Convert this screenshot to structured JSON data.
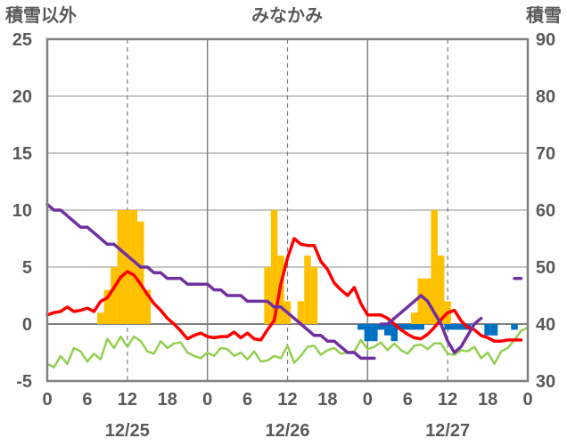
{
  "chart_data": {
    "type": "combo",
    "title": "みなかみ",
    "ylabel_left": "積雪以外",
    "ylabel_right": "積雪",
    "ylim_left": [
      -5,
      25
    ],
    "ylim_right": [
      30,
      90
    ],
    "yticks_left": [
      "-5",
      "0",
      "5",
      "10",
      "15",
      "20",
      "25"
    ],
    "yticks_right": [
      "30",
      "40",
      "50",
      "60",
      "70",
      "80",
      "90"
    ],
    "xlim": [
      0,
      72
    ],
    "xticks": [
      "0",
      "6",
      "12",
      "18",
      "0",
      "6",
      "12",
      "18",
      "0",
      "6",
      "12",
      "18",
      "0"
    ],
    "date_labels": [
      "12/25",
      "12/26",
      "12/27"
    ],
    "colors": {
      "bars": "#ffc000",
      "bars_negative": "#0070c0",
      "red": "#ff0000",
      "green": "#92d050",
      "purple": "#7030a0",
      "frame": "#808080"
    },
    "bars": [
      {
        "x": 8,
        "value": 1
      },
      {
        "x": 9,
        "value": 3
      },
      {
        "x": 10,
        "value": 5
      },
      {
        "x": 11,
        "value": 10
      },
      {
        "x": 12,
        "value": 10
      },
      {
        "x": 13,
        "value": 10
      },
      {
        "x": 14,
        "value": 9
      },
      {
        "x": 15,
        "value": 3
      },
      {
        "x": 33,
        "value": 5
      },
      {
        "x": 34,
        "value": 10
      },
      {
        "x": 35,
        "value": 6
      },
      {
        "x": 36,
        "value": 2
      },
      {
        "x": 38,
        "value": 2
      },
      {
        "x": 39,
        "value": 6
      },
      {
        "x": 40,
        "value": 5
      },
      {
        "x": 55,
        "value": 1
      },
      {
        "x": 56,
        "value": 4
      },
      {
        "x": 57,
        "value": 4
      },
      {
        "x": 58,
        "value": 10
      },
      {
        "x": 59,
        "value": 6
      },
      {
        "x": 60,
        "value": 2
      }
    ],
    "bars_negative": [
      {
        "x": 47,
        "value": -0.5
      },
      {
        "x": 48,
        "value": -1.5
      },
      {
        "x": 49,
        "value": -1.5
      },
      {
        "x": 50,
        "value": -0.5
      },
      {
        "x": 51,
        "value": -1
      },
      {
        "x": 52,
        "value": -1.5
      },
      {
        "x": 53,
        "value": -0.5
      },
      {
        "x": 54,
        "value": -0.5
      },
      {
        "x": 55,
        "value": -0.5
      },
      {
        "x": 56,
        "value": -0.5
      },
      {
        "x": 60,
        "value": -0.5
      },
      {
        "x": 61,
        "value": -0.5
      },
      {
        "x": 62,
        "value": -0.5
      },
      {
        "x": 63,
        "value": -0.5
      },
      {
        "x": 66,
        "value": -1
      },
      {
        "x": 67,
        "value": -1
      },
      {
        "x": 70,
        "value": -0.5
      }
    ],
    "series": [
      {
        "axis": "left",
        "color": "#ff0000",
        "x": [
          0,
          1,
          2,
          3,
          4,
          5,
          6,
          7,
          8,
          9,
          10,
          11,
          12,
          13,
          14,
          15,
          16,
          17,
          18,
          19,
          20,
          21,
          22,
          23,
          24,
          25,
          26,
          27,
          28,
          29,
          30,
          31,
          32,
          33,
          34,
          35,
          36,
          37,
          38,
          39,
          40,
          41,
          42,
          43,
          44,
          45,
          46,
          47,
          48,
          49,
          50,
          51,
          52,
          53,
          54,
          55,
          56,
          57,
          58,
          59,
          60,
          61,
          62,
          63,
          64,
          65,
          66,
          67,
          68,
          69,
          70,
          71
        ],
        "values": [
          0.8,
          1,
          1.1,
          1.5,
          1.1,
          1.2,
          1.4,
          1.1,
          2,
          2.3,
          3.2,
          4.1,
          4.6,
          4.3,
          3.5,
          2.6,
          1.8,
          1.2,
          0.5,
          0,
          -0.6,
          -1.3,
          -1,
          -0.8,
          -1.1,
          -1.2,
          -1.1,
          -1.1,
          -0.7,
          -1.2,
          -0.8,
          -1.3,
          -1.4,
          -0.5,
          0.3,
          3.5,
          5.8,
          7.5,
          7,
          6.9,
          6.9,
          5.5,
          4.8,
          3.6,
          3,
          2.5,
          3.2,
          1.8,
          0.8,
          0.8,
          0.8,
          0.5,
          0,
          -0.5,
          -0.9,
          -1.2,
          -1.3,
          -0.9,
          -0.3,
          0.4,
          1,
          1.2,
          0.3,
          -0.3,
          -0.5,
          -1,
          -1.2,
          -1.5,
          -1.5,
          -1.4,
          -1.4,
          -1.4
        ]
      },
      {
        "axis": "left",
        "color": "#92d050",
        "x": [
          0,
          1,
          2,
          3,
          4,
          5,
          6,
          7,
          8,
          9,
          10,
          11,
          12,
          13,
          14,
          15,
          16,
          17,
          18,
          19,
          20,
          21,
          22,
          23,
          24,
          25,
          26,
          27,
          28,
          29,
          30,
          31,
          32,
          33,
          34,
          35,
          36,
          37,
          38,
          39,
          40,
          41,
          42,
          43,
          44,
          45,
          46,
          47,
          48,
          49,
          50,
          51,
          52,
          53,
          54,
          55,
          56,
          57,
          58,
          59,
          60,
          61,
          62,
          63,
          64,
          65,
          66,
          67,
          68,
          69,
          70,
          71,
          72
        ],
        "values": [
          -3.5,
          -3.8,
          -2.8,
          -3.5,
          -2.1,
          -2.4,
          -3.3,
          -2.6,
          -3.1,
          -1.3,
          -2.1,
          -1.1,
          -2,
          -1.1,
          -1.5,
          -2.4,
          -2.6,
          -1.5,
          -2.1,
          -1.7,
          -1.6,
          -2.5,
          -2.8,
          -3,
          -2.5,
          -2.8,
          -2.1,
          -2.2,
          -2.8,
          -2.5,
          -3.1,
          -2.4,
          -3.3,
          -3.2,
          -2.8,
          -3,
          -1.9,
          -3.4,
          -2.8,
          -2,
          -1.9,
          -2.7,
          -2.3,
          -2.1,
          -2.6,
          -2.5,
          -2.4,
          -1.4,
          -2.2,
          -2,
          -1.6,
          -2.3,
          -1.7,
          -2.3,
          -2.6,
          -1.9,
          -1.8,
          -2.2,
          -1.7,
          -1.7,
          -2.6,
          -2.7,
          -2.3,
          -2.4,
          -2,
          -3,
          -2.5,
          -3.5,
          -2.4,
          -2.1,
          -1.4,
          -0.6,
          -0.3
        ]
      },
      {
        "axis": "right",
        "color": "#7030a0",
        "x": [
          0,
          1,
          2,
          3,
          4,
          5,
          6,
          7,
          8,
          9,
          10,
          11,
          12,
          13,
          14,
          15,
          16,
          17,
          18,
          19,
          20,
          21,
          22,
          23,
          24,
          25,
          26,
          27,
          28,
          29,
          30,
          31,
          32,
          33,
          34,
          35,
          36,
          37,
          38,
          39,
          40,
          41,
          42,
          43,
          44,
          45,
          46,
          47,
          48,
          49,
          50,
          51,
          52,
          53,
          54,
          55,
          56,
          57,
          58,
          59,
          60,
          61,
          62,
          63,
          64,
          65,
          66,
          67,
          68,
          69,
          70,
          71
        ],
        "values": [
          61,
          60,
          60,
          59,
          58,
          57,
          57,
          56,
          55,
          54,
          54,
          53,
          52,
          51,
          50,
          50,
          49,
          49,
          48,
          48,
          48,
          47,
          47,
          47,
          47,
          46,
          46,
          45,
          45,
          45,
          44,
          44,
          44,
          44,
          43,
          43,
          42,
          41,
          40,
          39,
          38,
          38,
          37,
          37,
          36,
          35,
          35,
          34,
          34,
          34,
          null,
          null,
          null,
          null,
          null,
          null,
          null,
          null,
          null,
          null,
          null,
          null,
          null,
          null,
          null,
          null,
          null,
          null,
          null,
          null,
          null,
          null
        ]
      },
      {
        "axis": "right",
        "color": "#7030a0",
        "x": [
          50,
          51,
          52,
          53,
          54,
          55,
          56,
          57,
          58,
          59,
          60,
          61,
          62,
          63,
          64,
          65,
          66,
          67,
          68,
          69,
          70,
          71
        ],
        "values": [
          40,
          40,
          41,
          42,
          43,
          44,
          45,
          44,
          42,
          40,
          37,
          35,
          36,
          38,
          40,
          41,
          null,
          null,
          null,
          null,
          48,
          48
        ]
      }
    ]
  }
}
